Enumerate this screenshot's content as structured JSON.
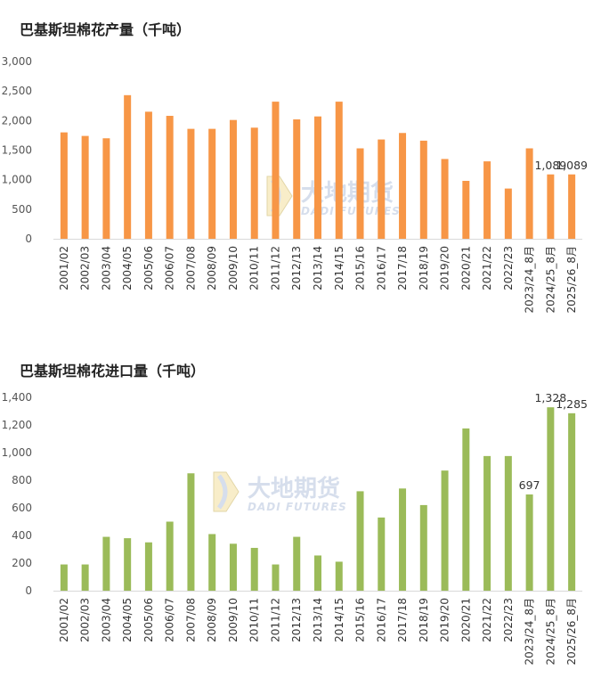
{
  "watermark": {
    "name": "大地期货",
    "subtitle": "DADI FUTURES"
  },
  "chart_data": [
    {
      "type": "bar",
      "title": "巴基斯坦棉花产量（千吨）",
      "color": "#f79646",
      "categories": [
        "2001/02",
        "2002/03",
        "2003/04",
        "2004/05",
        "2005/06",
        "2006/07",
        "2007/08",
        "2008/09",
        "2009/10",
        "2010/11",
        "2011/12",
        "2012/13",
        "2013/14",
        "2014/15",
        "2015/16",
        "2016/17",
        "2017/18",
        "2018/19",
        "2019/20",
        "2020/21",
        "2021/22",
        "2022/23",
        "2023/24_8月",
        "2024/25_8月",
        "2025/26_8月"
      ],
      "values": [
        1800,
        1740,
        1700,
        2430,
        2150,
        2080,
        1860,
        1860,
        2010,
        1880,
        2320,
        2020,
        2070,
        2320,
        1530,
        1680,
        1790,
        1660,
        1350,
        980,
        1310,
        850,
        1530,
        1089,
        1089
      ],
      "data_labels": [
        {
          "index": 23,
          "text": "1,089"
        },
        {
          "index": 24,
          "text": "1,089"
        }
      ],
      "ylim": [
        0,
        3000
      ],
      "yticks": [
        "0",
        "500",
        "1,000",
        "1,500",
        "2,000",
        "2,500",
        "3,000"
      ],
      "grid": false
    },
    {
      "type": "bar",
      "title": "巴基斯坦棉花进口量（千吨）",
      "color": "#9bbb59",
      "categories": [
        "2001/02",
        "2002/03",
        "2003/04",
        "2004/05",
        "2005/06",
        "2006/07",
        "2007/08",
        "2008/09",
        "2009/10",
        "2010/11",
        "2011/12",
        "2012/13",
        "2013/14",
        "2014/15",
        "2015/16",
        "2016/17",
        "2017/18",
        "2018/19",
        "2019/20",
        "2020/21",
        "2021/22",
        "2022/23",
        "2023/24_8月",
        "2024/25_8月",
        "2025/26_8月"
      ],
      "values": [
        190,
        190,
        390,
        380,
        350,
        500,
        850,
        410,
        340,
        310,
        190,
        390,
        255,
        210,
        720,
        530,
        740,
        620,
        870,
        1175,
        975,
        975,
        697,
        1328,
        1285
      ],
      "data_labels": [
        {
          "index": 22,
          "text": "697"
        },
        {
          "index": 23,
          "text": "1,328"
        },
        {
          "index": 24,
          "text": "1,285"
        }
      ],
      "ylim": [
        0,
        1400
      ],
      "yticks": [
        "0",
        "200",
        "400",
        "600",
        "800",
        "1,000",
        "1,200",
        "1,400"
      ],
      "grid": false
    }
  ]
}
